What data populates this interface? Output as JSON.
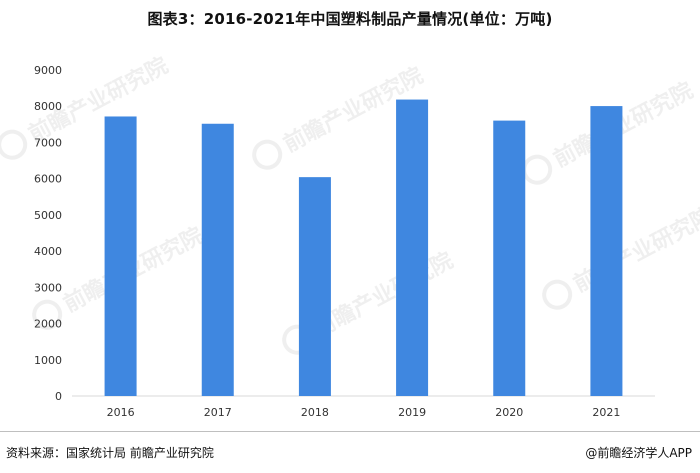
{
  "chart_data": {
    "type": "bar",
    "title": "图表3：2016-2021年中国塑料制品产量情况(单位：万吨)",
    "categories": [
      "2016",
      "2017",
      "2018",
      "2019",
      "2020",
      "2021"
    ],
    "values": [
      7717,
      7516,
      6042,
      8184,
      7603,
      8004
    ],
    "ylim": [
      0,
      9000
    ],
    "yticks": [
      0,
      1000,
      2000,
      3000,
      4000,
      5000,
      6000,
      7000,
      8000,
      9000
    ],
    "grid": false,
    "legend": "none",
    "bar_color": "#3f87e0"
  },
  "footer": {
    "source": "资料来源：国家统计局 前瞻产业研究院",
    "brand": "@前瞻经济学人APP"
  },
  "watermark": {
    "text": "前瞻产业研究院"
  }
}
